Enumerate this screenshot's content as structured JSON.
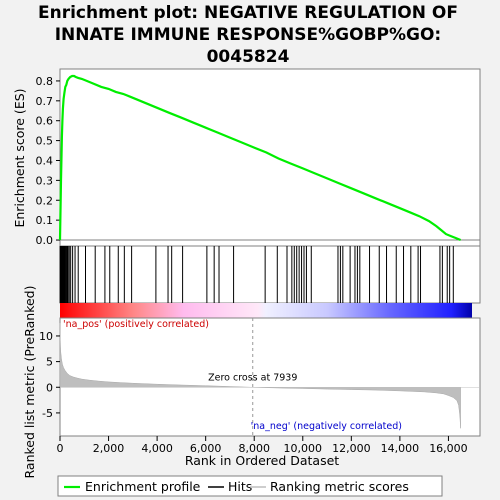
{
  "chart_data": {
    "type": "line",
    "title_lines": [
      "Enrichment plot: NEGATIVE REGULATION OF",
      "INNATE IMMUNE RESPONSE%GOBP%GO:",
      "0045824"
    ],
    "es_panel": {
      "ylabel": "Enrichment score (ES)",
      "ylim": [
        -0.03,
        0.86
      ],
      "yticks": [
        0.0,
        0.1,
        0.2,
        0.3,
        0.4,
        0.5,
        0.6,
        0.7,
        0.8
      ],
      "ytick_labels": [
        "0.0",
        "0.1",
        "0.2",
        "0.3",
        "0.4",
        "0.5",
        "0.6",
        "0.7",
        "0.8"
      ],
      "series": [
        {
          "name": "Enrichment profile",
          "color": "#00ee00",
          "x": [
            0,
            20,
            40,
            60,
            80,
            100,
            120,
            150,
            180,
            220,
            260,
            300,
            350,
            420,
            500,
            580,
            650,
            750,
            900,
            1100,
            1400,
            1700,
            2000,
            2300,
            2600,
            2900,
            3200,
            3600,
            4000,
            4500,
            5000,
            5500,
            6000,
            6500,
            7000,
            7500,
            8000,
            8500,
            9000,
            9500,
            10000,
            10500,
            11000,
            11500,
            12000,
            12500,
            13000,
            13500,
            14000,
            14400,
            14800,
            15200,
            15500,
            15700,
            15900,
            16100,
            16300,
            16500
          ],
          "y": [
            0.0,
            0.15,
            0.3,
            0.42,
            0.52,
            0.6,
            0.66,
            0.71,
            0.74,
            0.77,
            0.78,
            0.8,
            0.81,
            0.82,
            0.825,
            0.825,
            0.82,
            0.815,
            0.81,
            0.8,
            0.785,
            0.77,
            0.76,
            0.745,
            0.735,
            0.72,
            0.705,
            0.685,
            0.665,
            0.64,
            0.615,
            0.59,
            0.565,
            0.54,
            0.515,
            0.49,
            0.465,
            0.44,
            0.41,
            0.385,
            0.36,
            0.335,
            0.31,
            0.285,
            0.26,
            0.235,
            0.21,
            0.185,
            0.16,
            0.14,
            0.12,
            0.095,
            0.07,
            0.05,
            0.03,
            0.02,
            0.01,
            0.0
          ]
        }
      ]
    },
    "hits": [
      5,
      20,
      35,
      50,
      65,
      80,
      95,
      110,
      130,
      150,
      170,
      195,
      220,
      250,
      290,
      330,
      380,
      440,
      520,
      620,
      750,
      1050,
      1450,
      1850,
      2050,
      2400,
      2650,
      2950,
      3950,
      4450,
      4600,
      5050,
      6050,
      6350,
      6550,
      7150,
      8450,
      8950,
      9350,
      9550,
      9650,
      9750,
      9850,
      9950,
      10050,
      10150,
      10350,
      11450,
      11550,
      11650,
      11950,
      12150,
      12250,
      12350,
      12750,
      13150,
      13450,
      13850,
      14150,
      14450,
      14750,
      14850,
      15650,
      15750,
      15950,
      16050,
      16200
    ],
    "ranked_panel": {
      "ylabel": "Ranked list metric (PreRanked)",
      "ylim": [
        -9.5,
        13.5
      ],
      "yticks": [
        -5,
        0,
        5,
        10
      ],
      "ytick_labels": [
        "-5",
        "0",
        "5",
        "10"
      ],
      "fill_color": "#bebebe",
      "metric_x": [
        0,
        10,
        30,
        60,
        100,
        150,
        220,
        300,
        400,
        550,
        700,
        900,
        1200,
        1600,
        2000,
        2500,
        3000,
        3500,
        4000,
        5000,
        6000,
        7000,
        7939,
        9000,
        10000,
        11000,
        12000,
        13000,
        14000,
        15000,
        15500,
        15800,
        16000,
        16200,
        16350,
        16420,
        16470,
        16500
      ],
      "metric_y": [
        12.5,
        9.5,
        7.0,
        5.5,
        4.5,
        3.8,
        3.2,
        2.7,
        2.3,
        2.0,
        1.8,
        1.6,
        1.4,
        1.2,
        1.05,
        0.9,
        0.8,
        0.7,
        0.6,
        0.45,
        0.3,
        0.15,
        0.0,
        -0.15,
        -0.25,
        -0.35,
        -0.45,
        -0.55,
        -0.7,
        -0.9,
        -1.1,
        -1.3,
        -1.6,
        -2.0,
        -2.6,
        -3.5,
        -5.5,
        -8.0
      ],
      "zero_cross_label": "Zero cross at 7939",
      "zero_cross_x": 7939,
      "pos_label": "'na_pos' (positively correlated)",
      "neg_label": "'na_neg' (negatively correlated)",
      "pos_label_color": "#cc0000",
      "neg_label_color": "#0000cc"
    },
    "xaxis": {
      "label": "Rank in Ordered Dataset",
      "xlim": [
        0,
        17300
      ],
      "xticks": [
        0,
        2000,
        4000,
        6000,
        8000,
        10000,
        12000,
        14000,
        16000
      ],
      "xtick_labels": [
        "0",
        "2,000",
        "4,000",
        "6,000",
        "8,000",
        "10,000",
        "12,000",
        "14,000",
        "16,000"
      ],
      "n_genes": 16500
    },
    "legend": {
      "placement": "bottom",
      "entries": [
        {
          "label": "Enrichment profile",
          "color": "#00ee00"
        },
        {
          "label": "Hits",
          "color": "#000000"
        },
        {
          "label": "Ranking metric scores",
          "color": "#bebebe"
        }
      ]
    }
  }
}
